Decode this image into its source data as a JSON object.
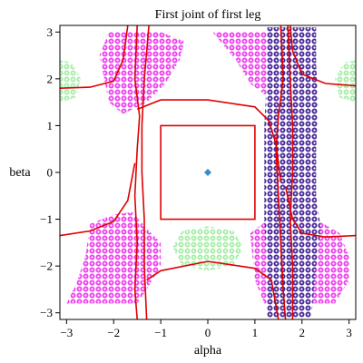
{
  "chart_data": {
    "type": "scatter",
    "title": "First joint of first leg",
    "xlabel": "alpha",
    "ylabel": "beta",
    "xlim": [
      -3.14159,
      3.14159
    ],
    "ylim": [
      -3.14159,
      3.14159
    ],
    "x_ticks": [
      -3,
      -2,
      -1,
      0,
      1,
      2,
      3
    ],
    "y_ticks": [
      3,
      2,
      1,
      0,
      -1,
      -2,
      -3
    ],
    "x_tick_labels": [
      "−3",
      "−2",
      "−1",
      "0",
      "1",
      "2",
      "3"
    ],
    "y_tick_labels": [
      "3",
      "2",
      "1",
      "0",
      "−1",
      "−2",
      "−3"
    ],
    "grid": false,
    "legend": "none",
    "colors": {
      "magenta": "#ee44ee",
      "green": "#a8eea8",
      "purple": "#4a2a9a",
      "curve": "#e00000",
      "point": "#3a8ac8",
      "frame": "#000000"
    },
    "regions": [
      {
        "color": "magenta",
        "polygon": [
          [
            -2.1,
            3.0
          ],
          [
            -1.6,
            3.0
          ],
          [
            -1.0,
            3.0
          ],
          [
            -0.5,
            2.8
          ],
          [
            -0.6,
            2.4
          ],
          [
            -0.9,
            1.9
          ],
          [
            -1.3,
            1.5
          ],
          [
            -1.8,
            1.25
          ],
          [
            -2.1,
            1.5
          ],
          [
            -2.2,
            2.0
          ],
          [
            -2.3,
            2.5
          ]
        ]
      },
      {
        "color": "magenta",
        "polygon": [
          [
            0.1,
            3.0
          ],
          [
            1.6,
            3.0
          ],
          [
            1.7,
            2.6
          ],
          [
            1.6,
            2.0
          ],
          [
            1.3,
            1.6
          ],
          [
            0.9,
            1.9
          ],
          [
            0.6,
            2.4
          ]
        ]
      },
      {
        "color": "magenta",
        "polygon": [
          [
            -2.5,
            -1.1
          ],
          [
            -2.0,
            -0.9
          ],
          [
            -1.6,
            -0.85
          ],
          [
            -1.3,
            -1.2
          ],
          [
            -1.0,
            -1.5
          ],
          [
            -1.0,
            -2.0
          ],
          [
            -1.3,
            -2.5
          ],
          [
            -1.5,
            -2.8
          ],
          [
            -2.0,
            -2.8
          ],
          [
            -3.0,
            -2.8
          ],
          [
            -2.8,
            -2.4
          ],
          [
            -2.6,
            -1.8
          ]
        ]
      },
      {
        "color": "magenta",
        "polygon": [
          [
            0.9,
            -1.3
          ],
          [
            1.3,
            -1.0
          ],
          [
            1.8,
            -0.9
          ],
          [
            2.3,
            -1.0
          ],
          [
            2.8,
            -1.3
          ],
          [
            3.0,
            -1.8
          ],
          [
            3.0,
            -2.3
          ],
          [
            2.7,
            -2.8
          ],
          [
            2.0,
            -2.8
          ],
          [
            1.2,
            -2.8
          ],
          [
            1.0,
            -2.3
          ],
          [
            0.95,
            -1.8
          ]
        ]
      },
      {
        "color": "green",
        "polygon": [
          [
            -3.15,
            2.4
          ],
          [
            -2.9,
            2.35
          ],
          [
            -2.7,
            2.0
          ],
          [
            -2.8,
            1.6
          ],
          [
            -3.15,
            1.5
          ]
        ]
      },
      {
        "color": "green",
        "polygon": [
          [
            3.15,
            2.4
          ],
          [
            2.9,
            2.35
          ],
          [
            2.7,
            2.0
          ],
          [
            2.8,
            1.6
          ],
          [
            3.15,
            1.5
          ]
        ]
      },
      {
        "color": "green",
        "polygon": [
          [
            -0.55,
            -1.25
          ],
          [
            0.0,
            -1.15
          ],
          [
            0.55,
            -1.25
          ],
          [
            0.75,
            -1.6
          ],
          [
            0.55,
            -2.0
          ],
          [
            0.0,
            -2.1
          ],
          [
            -0.55,
            -2.0
          ],
          [
            -0.75,
            -1.6
          ]
        ]
      },
      {
        "color": "purple",
        "polygon": [
          [
            1.25,
            3.1
          ],
          [
            2.3,
            3.1
          ],
          [
            2.3,
            2.3
          ],
          [
            2.35,
            1.5
          ],
          [
            2.3,
            0.5
          ],
          [
            2.3,
            -0.5
          ],
          [
            2.4,
            -1.2
          ],
          [
            2.3,
            -2.0
          ],
          [
            2.2,
            -3.1
          ],
          [
            1.25,
            -3.1
          ],
          [
            1.25,
            -2.0
          ],
          [
            1.2,
            -1.0
          ],
          [
            1.2,
            0.0
          ],
          [
            1.2,
            1.0
          ],
          [
            1.25,
            2.0
          ]
        ]
      }
    ],
    "curves": [
      {
        "points": [
          [
            -1.5,
            3.14
          ],
          [
            -1.55,
            2.0
          ],
          [
            -1.45,
            1.2
          ],
          [
            -1.5,
            0.5
          ],
          [
            -1.55,
            -0.5
          ],
          [
            -1.5,
            -1.5
          ],
          [
            -1.55,
            -2.5
          ],
          [
            -1.5,
            -3.14
          ]
        ]
      },
      {
        "points": [
          [
            -1.25,
            3.14
          ],
          [
            -1.35,
            2.0
          ],
          [
            -1.4,
            1.0
          ],
          [
            -1.4,
            0.0
          ],
          [
            -1.35,
            -1.0
          ],
          [
            -1.35,
            -2.0
          ],
          [
            -1.3,
            -3.14
          ]
        ]
      },
      {
        "points": [
          [
            1.55,
            3.14
          ],
          [
            1.6,
            2.0
          ],
          [
            1.5,
            1.2
          ],
          [
            1.45,
            0.5
          ],
          [
            1.5,
            -0.5
          ],
          [
            1.55,
            -1.5
          ],
          [
            1.6,
            -2.5
          ],
          [
            1.65,
            -3.14
          ]
        ]
      },
      {
        "points": [
          [
            1.7,
            3.14
          ],
          [
            1.75,
            2.0
          ],
          [
            1.8,
            1.0
          ],
          [
            1.8,
            0.0
          ],
          [
            1.75,
            -1.0
          ],
          [
            1.8,
            -2.0
          ],
          [
            1.8,
            -3.14
          ]
        ]
      },
      {
        "points": [
          [
            -3.14,
            1.8
          ],
          [
            -2.5,
            1.82
          ],
          [
            -2.0,
            1.95
          ],
          [
            -1.8,
            2.4
          ],
          [
            -1.7,
            3.14
          ]
        ]
      },
      {
        "points": [
          [
            -1.5,
            1.35
          ],
          [
            -1.0,
            1.55
          ],
          [
            0.0,
            1.55
          ],
          [
            1.0,
            1.4
          ],
          [
            1.3,
            1.1
          ],
          [
            1.45,
            0.6
          ],
          [
            1.55,
            -0.2
          ]
        ]
      },
      {
        "points": [
          [
            3.14,
            1.85
          ],
          [
            2.5,
            1.9
          ],
          [
            2.0,
            2.1
          ],
          [
            1.8,
            2.6
          ],
          [
            1.75,
            3.14
          ]
        ]
      },
      {
        "points": [
          [
            -3.14,
            -1.35
          ],
          [
            -2.5,
            -1.25
          ],
          [
            -2.0,
            -1.05
          ],
          [
            -1.7,
            -0.6
          ],
          [
            -1.55,
            0.2
          ]
        ]
      },
      {
        "points": [
          [
            3.14,
            -1.35
          ],
          [
            2.5,
            -1.38
          ],
          [
            2.0,
            -1.3
          ],
          [
            1.8,
            -1.0
          ],
          [
            1.65,
            -0.3
          ]
        ]
      },
      {
        "points": [
          [
            -1.3,
            -2.3
          ],
          [
            -1.0,
            -2.1
          ],
          [
            0.0,
            -1.9
          ],
          [
            1.0,
            -2.05
          ],
          [
            1.35,
            -2.3
          ],
          [
            1.5,
            -3.14
          ]
        ]
      }
    ],
    "rectangles": [
      {
        "x0": -1.0,
        "y0": -1.0,
        "x1": 1.0,
        "y1": 1.0
      }
    ],
    "points": [
      {
        "x": 0.0,
        "y": 0.0
      }
    ]
  }
}
